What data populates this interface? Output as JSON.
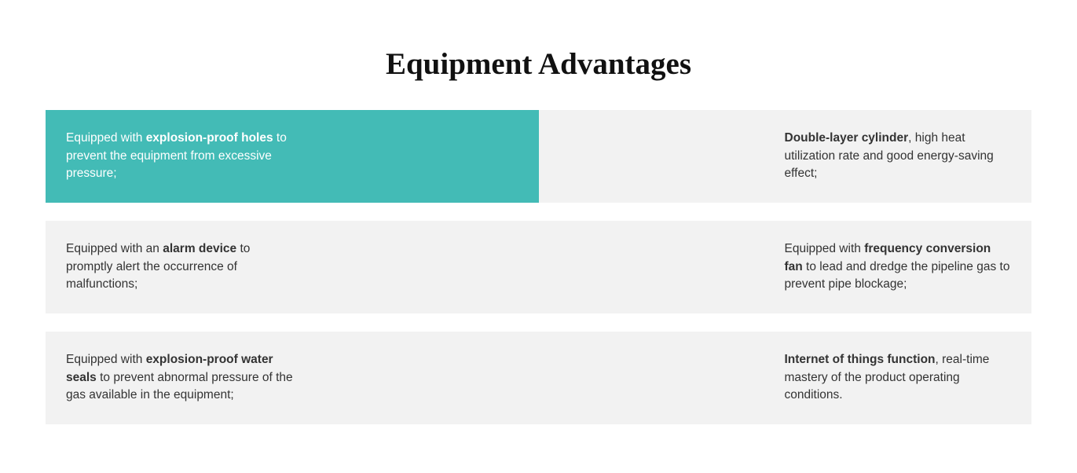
{
  "header": {
    "title": "Equipment Advantages"
  },
  "rows": [
    {
      "left": {
        "active": true,
        "parts": [
          {
            "text": "Equipped with ",
            "bold": false
          },
          {
            "text": "explosion-proof holes",
            "bold": true
          },
          {
            "text": " to prevent the equipment from excessive pressure;",
            "bold": false
          }
        ]
      },
      "right": {
        "active": false,
        "parts": [
          {
            "text": "Double-layer cylinder",
            "bold": true
          },
          {
            "text": ", high heat utilization rate and good energy-saving effect;",
            "bold": false
          }
        ]
      }
    },
    {
      "left": {
        "active": false,
        "parts": [
          {
            "text": "Equipped with an ",
            "bold": false
          },
          {
            "text": "alarm device",
            "bold": true
          },
          {
            "text": " to promptly alert the occurrence of malfunctions;",
            "bold": false
          }
        ]
      },
      "right": {
        "active": false,
        "parts": [
          {
            "text": "Equipped with ",
            "bold": false
          },
          {
            "text": "frequency conversion fan",
            "bold": true
          },
          {
            "text": " to lead and dredge the pipeline gas to prevent pipe blockage;",
            "bold": false
          }
        ]
      }
    },
    {
      "left": {
        "active": false,
        "parts": [
          {
            "text": "Equipped with ",
            "bold": false
          },
          {
            "text": "explosion-proof water seals",
            "bold": true
          },
          {
            "text": " to prevent abnormal pressure of the gas available in the equipment;",
            "bold": false
          }
        ]
      },
      "right": {
        "active": false,
        "parts": [
          {
            "text": "Internet of things function",
            "bold": true
          },
          {
            "text": ", real-time mastery of the product operating conditions.",
            "bold": false
          }
        ]
      }
    }
  ]
}
